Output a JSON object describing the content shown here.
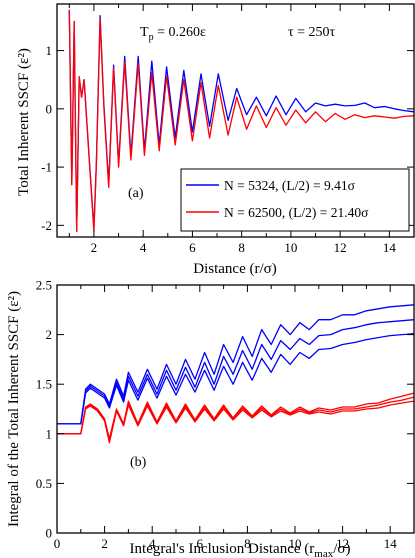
{
  "chart_data": [
    {
      "type": "line",
      "panel_label": "(a)",
      "xlabel": "Distance  (r/σ)",
      "ylabel": "Total  Inherent  SSCF  (ε²)",
      "xlim": [
        0.5,
        15
      ],
      "ylim": [
        -2.2,
        1.8
      ],
      "xticks": [
        "2",
        "4",
        "6",
        "8",
        "10",
        "12",
        "14"
      ],
      "yticks": [
        "-2",
        "-1",
        "0",
        "1"
      ],
      "grid": false,
      "legend_position": "lower-right",
      "annotations": {
        "tp": "T",
        "tp_sub": "p",
        "tp_value": " = 0.260ε",
        "tau": "τ = 250τ"
      },
      "series": [
        {
          "name": "N = 5324,  (L/2) = 9.41σ",
          "color": "#0000ff",
          "x": [
            1.0,
            1.1,
            1.2,
            1.3,
            1.4,
            1.5,
            1.6,
            1.8,
            2.0,
            2.1,
            2.25,
            2.4,
            2.6,
            2.8,
            3.0,
            3.25,
            3.5,
            3.8,
            4.05,
            4.35,
            4.65,
            4.95,
            5.3,
            5.65,
            6.0,
            6.35,
            6.7,
            7.05,
            7.45,
            7.8,
            8.2,
            8.6,
            9.0,
            9.4,
            9.8,
            10.2,
            10.6,
            11.0,
            11.4,
            11.8,
            12.2,
            12.6,
            13.0,
            13.4,
            13.8,
            14.2,
            14.6,
            15.0
          ],
          "values": [
            1.7,
            -1.3,
            1.5,
            -2.1,
            0.55,
            0.2,
            0.5,
            -0.8,
            -2.05,
            -0.9,
            1.6,
            0.1,
            -1.3,
            0.75,
            -0.95,
            0.9,
            -0.8,
            0.9,
            -0.72,
            0.82,
            -0.62,
            0.72,
            -0.5,
            0.66,
            -0.4,
            0.6,
            -0.3,
            0.6,
            -0.2,
            0.35,
            -0.1,
            0.2,
            -0.12,
            0.22,
            -0.1,
            0.18,
            -0.05,
            0.1,
            0.05,
            0.08,
            0.05,
            0.06,
            0.1,
            0.02,
            0.04,
            0.0,
            -0.03,
            -0.05
          ]
        },
        {
          "name": "N = 62500, (L/2) = 21.40σ",
          "color": "#ff0000",
          "x": [
            1.0,
            1.1,
            1.2,
            1.3,
            1.4,
            1.5,
            1.6,
            1.8,
            2.0,
            2.1,
            2.25,
            2.4,
            2.6,
            2.8,
            3.0,
            3.25,
            3.5,
            3.8,
            4.05,
            4.35,
            4.65,
            4.95,
            5.3,
            5.65,
            6.0,
            6.35,
            6.7,
            7.05,
            7.45,
            7.8,
            8.2,
            8.6,
            9.0,
            9.4,
            9.8,
            10.2,
            10.6,
            11.0,
            11.4,
            11.8,
            12.2,
            12.6,
            13.0,
            13.4,
            13.8,
            14.2,
            14.6,
            15.0
          ],
          "values": [
            1.7,
            -1.3,
            1.5,
            -2.1,
            0.55,
            0.2,
            0.5,
            -0.8,
            -2.1,
            -0.95,
            1.55,
            0.05,
            -1.35,
            0.7,
            -1.0,
            0.8,
            -0.88,
            0.78,
            -0.8,
            0.62,
            -0.72,
            0.56,
            -0.62,
            0.5,
            -0.55,
            0.45,
            -0.5,
            0.4,
            -0.45,
            0.2,
            -0.35,
            0.05,
            -0.32,
            0.02,
            -0.28,
            -0.02,
            -0.24,
            -0.05,
            -0.22,
            -0.08,
            -0.18,
            -0.1,
            -0.15,
            -0.12,
            -0.14,
            -0.16,
            -0.13,
            -0.12
          ]
        }
      ]
    },
    {
      "type": "line",
      "panel_label": "(b)",
      "xlabel": "Integral's Inclusion Distance  (r",
      "xlabel_sub": "max",
      "xlabel_end": "/σ)",
      "ylabel": "Integral of the Total Inherent SSCF (ε²)",
      "xlim": [
        0,
        15
      ],
      "ylim": [
        0,
        2.5
      ],
      "xticks": [
        "0",
        "2",
        "4",
        "6",
        "8",
        "10",
        "12",
        "14"
      ],
      "yticks": [
        "0",
        "0.5",
        "1",
        "1.5",
        "2",
        "2.5"
      ],
      "grid": false,
      "series": [
        {
          "name": "N = 5324 (upper)",
          "color": "#0000ff",
          "x": [
            0,
            1.0,
            1.2,
            1.4,
            1.7,
            2.0,
            2.2,
            2.5,
            2.8,
            3.0,
            3.4,
            3.8,
            4.2,
            4.6,
            5.0,
            5.4,
            5.8,
            6.2,
            6.6,
            7.0,
            7.4,
            7.8,
            8.2,
            8.6,
            9.0,
            9.4,
            9.8,
            10.2,
            10.6,
            11.0,
            11.5,
            12.0,
            12.5,
            13.0,
            13.5,
            14.0,
            14.5,
            15.0
          ],
          "values": [
            1.1,
            1.1,
            1.45,
            1.5,
            1.45,
            1.4,
            1.3,
            1.55,
            1.38,
            1.62,
            1.42,
            1.65,
            1.45,
            1.7,
            1.5,
            1.75,
            1.55,
            1.82,
            1.6,
            1.9,
            1.72,
            1.98,
            1.78,
            2.05,
            1.9,
            2.1,
            2.0,
            2.12,
            2.05,
            2.15,
            2.15,
            2.2,
            2.2,
            2.24,
            2.26,
            2.28,
            2.29,
            2.3
          ]
        },
        {
          "name": "N = 5324 (middle)",
          "color": "#0000ff",
          "x": [
            0,
            1.0,
            1.2,
            1.4,
            1.7,
            2.0,
            2.2,
            2.5,
            2.8,
            3.0,
            3.4,
            3.8,
            4.2,
            4.6,
            5.0,
            5.4,
            5.8,
            6.2,
            6.6,
            7.0,
            7.4,
            7.8,
            8.2,
            8.6,
            9.0,
            9.4,
            9.8,
            10.2,
            10.6,
            11.0,
            11.5,
            12.0,
            12.5,
            13.0,
            13.5,
            14.0,
            14.5,
            15.0
          ],
          "values": [
            1.1,
            1.1,
            1.43,
            1.48,
            1.43,
            1.38,
            1.28,
            1.52,
            1.35,
            1.58,
            1.38,
            1.6,
            1.4,
            1.64,
            1.44,
            1.67,
            1.47,
            1.72,
            1.5,
            1.78,
            1.6,
            1.84,
            1.65,
            1.9,
            1.75,
            1.94,
            1.85,
            1.96,
            1.9,
            1.99,
            2.0,
            2.05,
            2.07,
            2.1,
            2.12,
            2.13,
            2.14,
            2.15
          ]
        },
        {
          "name": "N = 5324 (lower)",
          "color": "#0000ff",
          "x": [
            0,
            1.0,
            1.2,
            1.4,
            1.7,
            2.0,
            2.2,
            2.5,
            2.8,
            3.0,
            3.4,
            3.8,
            4.2,
            4.6,
            5.0,
            5.4,
            5.8,
            6.2,
            6.6,
            7.0,
            7.4,
            7.8,
            8.2,
            8.6,
            9.0,
            9.4,
            9.8,
            10.2,
            10.6,
            11.0,
            11.5,
            12.0,
            12.5,
            13.0,
            13.5,
            14.0,
            14.5,
            15.0
          ],
          "values": [
            1.1,
            1.1,
            1.41,
            1.46,
            1.41,
            1.36,
            1.26,
            1.49,
            1.32,
            1.54,
            1.34,
            1.56,
            1.36,
            1.58,
            1.39,
            1.6,
            1.42,
            1.64,
            1.44,
            1.68,
            1.5,
            1.72,
            1.54,
            1.76,
            1.62,
            1.8,
            1.7,
            1.82,
            1.76,
            1.85,
            1.86,
            1.9,
            1.92,
            1.95,
            1.97,
            1.99,
            2.0,
            2.01
          ]
        },
        {
          "name": "N = 62500 (upper)",
          "color": "#ff0000",
          "x": [
            0,
            1.0,
            1.2,
            1.4,
            1.7,
            2.0,
            2.2,
            2.5,
            2.8,
            3.0,
            3.4,
            3.8,
            4.2,
            4.6,
            5.0,
            5.4,
            5.8,
            6.2,
            6.6,
            7.0,
            7.4,
            7.8,
            8.2,
            8.6,
            9.0,
            9.4,
            9.8,
            10.2,
            10.6,
            11.0,
            11.5,
            12.0,
            12.5,
            13.0,
            13.5,
            14.0,
            14.5,
            15.0
          ],
          "values": [
            1.0,
            1.0,
            1.27,
            1.3,
            1.25,
            1.15,
            0.95,
            1.25,
            1.1,
            1.33,
            1.1,
            1.32,
            1.12,
            1.31,
            1.13,
            1.3,
            1.14,
            1.29,
            1.15,
            1.29,
            1.16,
            1.28,
            1.18,
            1.28,
            1.19,
            1.27,
            1.21,
            1.27,
            1.22,
            1.26,
            1.24,
            1.27,
            1.27,
            1.3,
            1.31,
            1.35,
            1.38,
            1.41
          ]
        },
        {
          "name": "N = 62500 (middle)",
          "color": "#ff0000",
          "x": [
            0,
            1.0,
            1.2,
            1.4,
            1.7,
            2.0,
            2.2,
            2.5,
            2.8,
            3.0,
            3.4,
            3.8,
            4.2,
            4.6,
            5.0,
            5.4,
            5.8,
            6.2,
            6.6,
            7.0,
            7.4,
            7.8,
            8.2,
            8.6,
            9.0,
            9.4,
            9.8,
            10.2,
            10.6,
            11.0,
            11.5,
            12.0,
            12.5,
            13.0,
            13.5,
            14.0,
            14.5,
            15.0
          ],
          "values": [
            1.0,
            1.0,
            1.26,
            1.29,
            1.24,
            1.14,
            0.93,
            1.24,
            1.09,
            1.31,
            1.09,
            1.3,
            1.11,
            1.29,
            1.12,
            1.28,
            1.13,
            1.27,
            1.14,
            1.27,
            1.15,
            1.26,
            1.17,
            1.26,
            1.18,
            1.25,
            1.2,
            1.25,
            1.21,
            1.24,
            1.22,
            1.25,
            1.25,
            1.27,
            1.29,
            1.32,
            1.34,
            1.37
          ]
        },
        {
          "name": "N = 62500 (lower)",
          "color": "#ff0000",
          "x": [
            0,
            1.0,
            1.2,
            1.4,
            1.7,
            2.0,
            2.2,
            2.5,
            2.8,
            3.0,
            3.4,
            3.8,
            4.2,
            4.6,
            5.0,
            5.4,
            5.8,
            6.2,
            6.6,
            7.0,
            7.4,
            7.8,
            8.2,
            8.6,
            9.0,
            9.4,
            9.8,
            10.2,
            10.6,
            11.0,
            11.5,
            12.0,
            12.5,
            13.0,
            13.5,
            14.0,
            14.5,
            15.0
          ],
          "values": [
            1.0,
            1.0,
            1.25,
            1.28,
            1.23,
            1.13,
            0.91,
            1.23,
            1.08,
            1.29,
            1.08,
            1.28,
            1.1,
            1.27,
            1.11,
            1.26,
            1.12,
            1.25,
            1.13,
            1.25,
            1.14,
            1.24,
            1.16,
            1.24,
            1.17,
            1.23,
            1.19,
            1.23,
            1.2,
            1.22,
            1.2,
            1.23,
            1.23,
            1.25,
            1.26,
            1.29,
            1.31,
            1.33
          ]
        }
      ]
    }
  ]
}
